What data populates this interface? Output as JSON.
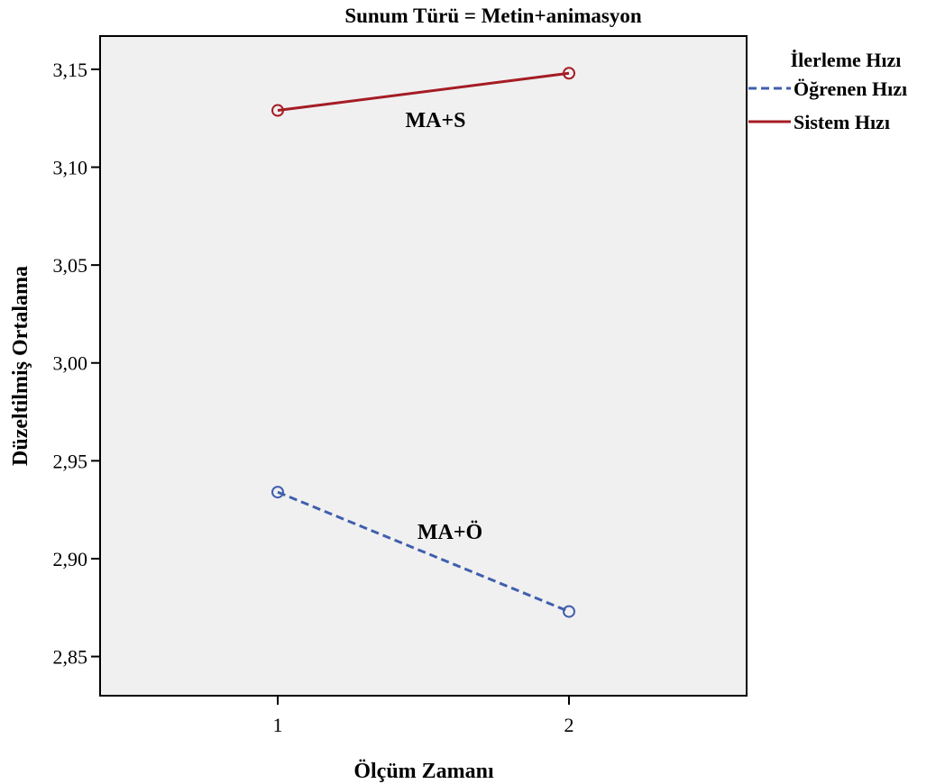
{
  "chart_data": {
    "type": "line",
    "title": "Sunum Türü = Metin+animasyon",
    "xlabel": "Ölçüm Zamanı",
    "ylabel": "Düzeltilmiş Ortalama",
    "categories": [
      "1",
      "2"
    ],
    "ylim": [
      2.83,
      3.167
    ],
    "yticks": [
      2.85,
      2.9,
      2.95,
      3.0,
      3.05,
      3.1,
      3.15
    ],
    "ytick_labels": [
      "2,85",
      "2,90",
      "2,95",
      "3,00",
      "3,05",
      "3,10",
      "3,15"
    ],
    "grid": false,
    "legend": {
      "title": "İlerleme Hızı",
      "position": "right"
    },
    "series": [
      {
        "name": "Öğrenen Hızı",
        "values": [
          2.934,
          2.873
        ],
        "color": "#3f5fad",
        "style": "dashed",
        "annotation": "MA+Ö"
      },
      {
        "name": "Sistem Hızı",
        "values": [
          3.129,
          3.148
        ],
        "color": "#a51c24",
        "style": "solid",
        "annotation": "MA+S"
      }
    ],
    "plot_background": "#f0f0f0"
  }
}
